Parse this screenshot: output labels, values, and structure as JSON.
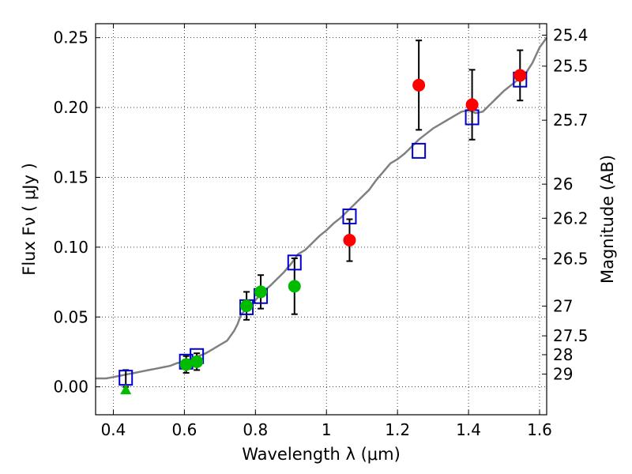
{
  "chart_data": {
    "type": "scatter",
    "title": "",
    "xlabel": "Wavelength  λ (μm)",
    "ylabel": "Flux  Fν  ( μJy )",
    "right_ylabel": "Magnitude (AB)",
    "xlim": [
      0.35,
      1.62
    ],
    "ylim": [
      -0.02,
      0.26
    ],
    "grid": true,
    "x_ticks": [
      0.4,
      0.6,
      0.8,
      1.0,
      1.2,
      1.4,
      1.6
    ],
    "x_tick_labels": [
      "0.4",
      "0.6",
      "0.8",
      "1",
      "1.2",
      "1.4",
      "1.6"
    ],
    "y_ticks": [
      0.0,
      0.05,
      0.1,
      0.15,
      0.2,
      0.25
    ],
    "y_tick_labels": [
      "0.00",
      "0.05",
      "0.10",
      "0.15",
      "0.20",
      "0.25"
    ],
    "right_ticks": [
      {
        "flux": 0.2518,
        "label": "25.4"
      },
      {
        "flux": 0.2296,
        "label": "25.5"
      },
      {
        "flux": 0.1909,
        "label": "25.7"
      },
      {
        "flux": 0.1451,
        "label": "26"
      },
      {
        "flux": 0.1207,
        "label": "26.2"
      },
      {
        "flux": 0.0916,
        "label": "26.5"
      },
      {
        "flux": 0.0578,
        "label": "27"
      },
      {
        "flux": 0.0365,
        "label": "27.5"
      },
      {
        "flux": 0.023,
        "label": "28"
      },
      {
        "flux": 0.0091,
        "label": "29"
      }
    ],
    "series": [
      {
        "marker": "line",
        "color": "#808080",
        "points": [
          [
            0.35,
            0.006
          ],
          [
            0.38,
            0.006
          ],
          [
            0.4,
            0.007
          ],
          [
            0.42,
            0.008
          ],
          [
            0.44,
            0.009
          ],
          [
            0.46,
            0.01
          ],
          [
            0.48,
            0.011
          ],
          [
            0.5,
            0.012
          ],
          [
            0.52,
            0.013
          ],
          [
            0.54,
            0.014
          ],
          [
            0.56,
            0.015
          ],
          [
            0.58,
            0.017
          ],
          [
            0.6,
            0.018
          ],
          [
            0.62,
            0.02
          ],
          [
            0.64,
            0.022
          ],
          [
            0.66,
            0.024
          ],
          [
            0.68,
            0.027
          ],
          [
            0.7,
            0.03
          ],
          [
            0.72,
            0.033
          ],
          [
            0.74,
            0.04
          ],
          [
            0.75,
            0.045
          ],
          [
            0.76,
            0.052
          ],
          [
            0.78,
            0.057
          ],
          [
            0.8,
            0.062
          ],
          [
            0.82,
            0.068
          ],
          [
            0.84,
            0.072
          ],
          [
            0.86,
            0.077
          ],
          [
            0.88,
            0.082
          ],
          [
            0.9,
            0.088
          ],
          [
            0.92,
            0.095
          ],
          [
            0.94,
            0.098
          ],
          [
            0.96,
            0.103
          ],
          [
            0.98,
            0.108
          ],
          [
            1.0,
            0.112
          ],
          [
            1.02,
            0.117
          ],
          [
            1.04,
            0.121
          ],
          [
            1.06,
            0.126
          ],
          [
            1.08,
            0.131
          ],
          [
            1.1,
            0.136
          ],
          [
            1.12,
            0.141
          ],
          [
            1.14,
            0.148
          ],
          [
            1.16,
            0.154
          ],
          [
            1.18,
            0.16
          ],
          [
            1.2,
            0.163
          ],
          [
            1.22,
            0.167
          ],
          [
            1.24,
            0.172
          ],
          [
            1.26,
            0.177
          ],
          [
            1.28,
            0.181
          ],
          [
            1.3,
            0.185
          ],
          [
            1.32,
            0.188
          ],
          [
            1.34,
            0.191
          ],
          [
            1.36,
            0.194
          ],
          [
            1.38,
            0.197
          ],
          [
            1.4,
            0.198
          ],
          [
            1.42,
            0.196
          ],
          [
            1.44,
            0.197
          ],
          [
            1.46,
            0.202
          ],
          [
            1.48,
            0.207
          ],
          [
            1.5,
            0.212
          ],
          [
            1.52,
            0.216
          ],
          [
            1.54,
            0.22
          ],
          [
            1.56,
            0.224
          ],
          [
            1.58,
            0.232
          ],
          [
            1.6,
            0.243
          ],
          [
            1.62,
            0.25
          ]
        ]
      },
      {
        "marker": "open-square",
        "color": "#0000cc",
        "points": [
          [
            0.435,
            0.0065
          ],
          [
            0.605,
            0.018
          ],
          [
            0.635,
            0.022
          ],
          [
            0.775,
            0.057
          ],
          [
            0.815,
            0.065
          ],
          [
            0.91,
            0.089
          ],
          [
            1.065,
            0.122
          ],
          [
            1.26,
            0.169
          ],
          [
            1.41,
            0.193
          ],
          [
            1.545,
            0.22
          ]
        ]
      },
      {
        "marker": "circle",
        "color": "#00bb00",
        "points": [
          [
            0.605,
            0.016
          ],
          [
            0.635,
            0.018
          ],
          [
            0.775,
            0.058
          ],
          [
            0.815,
            0.068
          ],
          [
            0.91,
            0.072
          ]
        ],
        "errors": [
          0.006,
          0.006,
          0.01,
          0.012,
          0.02
        ]
      },
      {
        "marker": "triangle",
        "color": "#00bb00",
        "points": [
          [
            0.435,
            -0.002
          ]
        ]
      },
      {
        "marker": "circle",
        "color": "#ff0000",
        "points": [
          [
            1.065,
            0.105
          ],
          [
            1.26,
            0.216
          ],
          [
            1.41,
            0.202
          ],
          [
            1.545,
            0.223
          ]
        ],
        "errors": [
          0.015,
          0.032,
          0.025,
          0.018
        ]
      },
      {
        "marker": "errorbar-only",
        "color": "#000000",
        "points": [
          [
            0.435,
            0.006
          ]
        ],
        "errors": [
          0.006
        ]
      }
    ]
  }
}
